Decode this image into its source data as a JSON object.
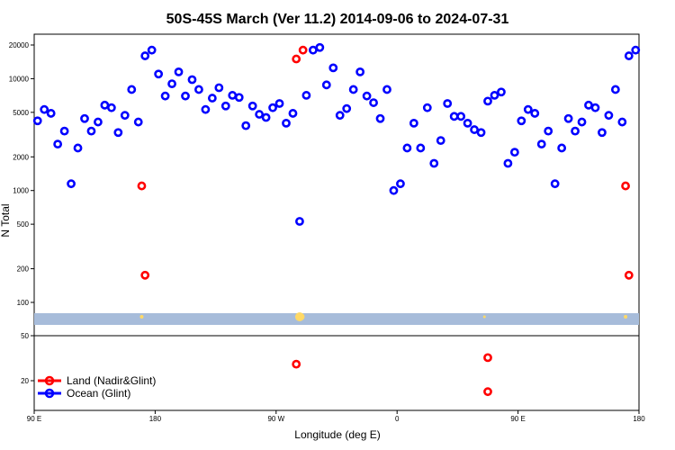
{
  "chart_data": {
    "type": "scatter",
    "title": "50S-45S March (Ver 11.2)   2014-09-06 to 2024-07-31",
    "xlabel": "Longitude (deg E)",
    "ylabel": "N Total",
    "x_axis": {
      "range_deg_east": [
        90,
        450
      ],
      "ticks": [
        {
          "value": 90,
          "label": "90 E"
        },
        {
          "value": 180,
          "label": "180"
        },
        {
          "value": 270,
          "label": "90 W"
        },
        {
          "value": 360,
          "label": "0"
        },
        {
          "value": 450,
          "label": "90 E"
        },
        {
          "value": 540,
          "label": "180"
        }
      ]
    },
    "y_axis": {
      "scale": "log",
      "range": [
        60,
        25000
      ],
      "ticks": [
        50,
        100,
        200,
        500,
        1000,
        2000,
        5000,
        10000,
        20000
      ],
      "lower_panel_ticks": [
        20
      ]
    },
    "legend": {
      "position": "bottom-left",
      "entries": [
        {
          "label": "Land (Nadir&Glint)",
          "color": "#ff0000"
        },
        {
          "label": "Ocean (Glint)",
          "color": "#0000ff"
        }
      ]
    },
    "colors": {
      "land": "#ff0000",
      "ocean": "#0000ff",
      "band": "#a7bcda",
      "tick_marker": "#ffd966"
    },
    "series": [
      {
        "name": "Ocean (Glint)",
        "points": [
          {
            "x": 92.5,
            "y": 4200
          },
          {
            "x": 97.5,
            "y": 5300
          },
          {
            "x": 102.5,
            "y": 4900
          },
          {
            "x": 107.5,
            "y": 2600
          },
          {
            "x": 112.5,
            "y": 3400
          },
          {
            "x": 117.5,
            "y": 1150
          },
          {
            "x": 122.5,
            "y": 2400
          },
          {
            "x": 127.5,
            "y": 4400
          },
          {
            "x": 132.5,
            "y": 3400
          },
          {
            "x": 137.5,
            "y": 4100
          },
          {
            "x": 142.5,
            "y": 5800
          },
          {
            "x": 147.5,
            "y": 5500
          },
          {
            "x": 152.5,
            "y": 3300
          },
          {
            "x": 157.5,
            "y": 4700
          },
          {
            "x": 162.5,
            "y": 8000
          },
          {
            "x": 167.5,
            "y": 4100
          },
          {
            "x": 172.5,
            "y": 16000
          },
          {
            "x": 177.5,
            "y": 18000
          },
          {
            "x": 182.5,
            "y": 11000
          },
          {
            "x": 187.5,
            "y": 7000
          },
          {
            "x": 192.5,
            "y": 9000
          },
          {
            "x": 197.5,
            "y": 11500
          },
          {
            "x": 202.5,
            "y": 7000
          },
          {
            "x": 207.5,
            "y": 9800
          },
          {
            "x": 212.5,
            "y": 8000
          },
          {
            "x": 217.5,
            "y": 5300
          },
          {
            "x": 222.5,
            "y": 6700
          },
          {
            "x": 227.5,
            "y": 8300
          },
          {
            "x": 232.5,
            "y": 5700
          },
          {
            "x": 237.5,
            "y": 7100
          },
          {
            "x": 242.5,
            "y": 6800
          },
          {
            "x": 247.5,
            "y": 3800
          },
          {
            "x": 252.5,
            "y": 5700
          },
          {
            "x": 257.5,
            "y": 4800
          },
          {
            "x": 262.5,
            "y": 4500
          },
          {
            "x": 267.5,
            "y": 5500
          },
          {
            "x": 272.5,
            "y": 6000
          },
          {
            "x": 277.5,
            "y": 4000
          },
          {
            "x": 282.5,
            "y": 4900
          },
          {
            "x": 287.5,
            "y": 530
          },
          {
            "x": 292.5,
            "y": 7100
          },
          {
            "x": 297.5,
            "y": 18000
          },
          {
            "x": 302.5,
            "y": 19000
          },
          {
            "x": 307.5,
            "y": 8800
          },
          {
            "x": 312.5,
            "y": 12500
          },
          {
            "x": 317.5,
            "y": 4700
          },
          {
            "x": 322.5,
            "y": 5400
          },
          {
            "x": 327.5,
            "y": 8000
          },
          {
            "x": 332.5,
            "y": 11500
          },
          {
            "x": 337.5,
            "y": 7000
          },
          {
            "x": 342.5,
            "y": 6100
          },
          {
            "x": 347.5,
            "y": 4400
          },
          {
            "x": 352.5,
            "y": 8000
          },
          {
            "x": 357.5,
            "y": 1000
          },
          {
            "x": 362.5,
            "y": 1150
          },
          {
            "x": 367.5,
            "y": 2400
          },
          {
            "x": 372.5,
            "y": 4000
          },
          {
            "x": 377.5,
            "y": 2400
          },
          {
            "x": 382.5,
            "y": 5500
          },
          {
            "x": 387.5,
            "y": 1750
          },
          {
            "x": 392.5,
            "y": 2800
          },
          {
            "x": 397.5,
            "y": 6000
          },
          {
            "x": 402.5,
            "y": 4600
          },
          {
            "x": 407.5,
            "y": 4600
          },
          {
            "x": 412.5,
            "y": 4000
          },
          {
            "x": 417.5,
            "y": 3500
          },
          {
            "x": 422.5,
            "y": 3300
          },
          {
            "x": 427.5,
            "y": 6300
          },
          {
            "x": 432.5,
            "y": 7100
          },
          {
            "x": 437.5,
            "y": 7600
          },
          {
            "x": 442.5,
            "y": 1750
          },
          {
            "x": 447.5,
            "y": 2200
          },
          {
            "x": 452.5,
            "y": 4200
          },
          {
            "x": 457.5,
            "y": 5300
          },
          {
            "x": 462.5,
            "y": 4900
          },
          {
            "x": 467.5,
            "y": 2600
          },
          {
            "x": 472.5,
            "y": 3400
          },
          {
            "x": 477.5,
            "y": 1150
          },
          {
            "x": 482.5,
            "y": 2400
          },
          {
            "x": 487.5,
            "y": 4400
          },
          {
            "x": 492.5,
            "y": 3400
          },
          {
            "x": 497.5,
            "y": 4100
          },
          {
            "x": 502.5,
            "y": 5800
          },
          {
            "x": 507.5,
            "y": 5500
          },
          {
            "x": 512.5,
            "y": 3300
          },
          {
            "x": 517.5,
            "y": 4700
          },
          {
            "x": 522.5,
            "y": 8000
          },
          {
            "x": 527.5,
            "y": 4100
          },
          {
            "x": 532.5,
            "y": 16000
          },
          {
            "x": 537.5,
            "y": 18000
          }
        ]
      },
      {
        "name": "Land (Nadir&Glint)",
        "points": [
          {
            "x": 170,
            "y": 1100
          },
          {
            "x": 172.5,
            "y": 175
          },
          {
            "x": 285,
            "y": 15000
          },
          {
            "x": 290,
            "y": 18000
          },
          {
            "x": 530,
            "y": 1100
          },
          {
            "x": 532.5,
            "y": 175
          }
        ]
      },
      {
        "name": "Land (Nadir&Glint) lower panel",
        "points": [
          {
            "x": 285,
            "y": 28
          },
          {
            "x": 427.5,
            "y": 32
          },
          {
            "x": 427.5,
            "y": 16
          }
        ]
      }
    ]
  }
}
